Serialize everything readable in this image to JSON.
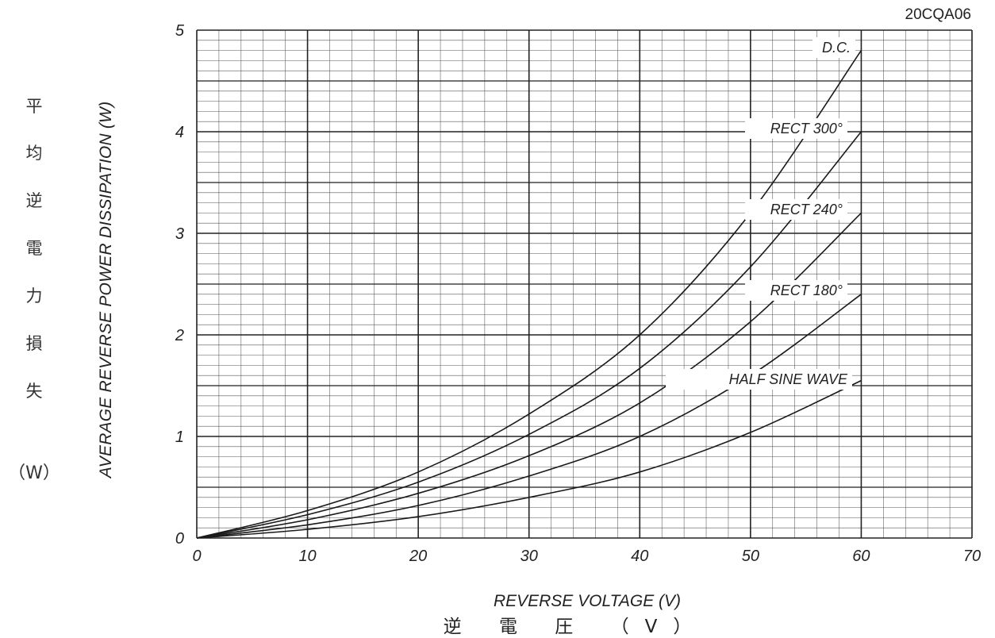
{
  "chart_data": {
    "type": "line",
    "title": "20CQA06",
    "xlabel": "REVERSE VOLTAGE (V)",
    "xlabel_jp": "逆 電 圧 （V）",
    "ylabel": "AVERAGE REVERSE POWER DISSIPATION (W)",
    "ylabel_jp": [
      "平",
      "均",
      "逆",
      "電",
      "力",
      "損",
      "失"
    ],
    "ylabel_jp_unit": "（W）",
    "xlim": [
      0,
      70
    ],
    "ylim": [
      0,
      5
    ],
    "x_ticks": [
      "0",
      "10",
      "20",
      "30",
      "40",
      "50",
      "60",
      "70"
    ],
    "y_ticks": [
      "0",
      "1",
      "2",
      "3",
      "4",
      "5"
    ],
    "grid": true,
    "x": [
      0,
      10,
      20,
      30,
      40,
      50,
      60
    ],
    "series": [
      {
        "name": "D.C.",
        "values": [
          0,
          0.27,
          0.65,
          1.22,
          2.0,
          3.2,
          4.8
        ]
      },
      {
        "name": "RECT 300°",
        "values": [
          0,
          0.23,
          0.55,
          1.02,
          1.67,
          2.67,
          4.0
        ]
      },
      {
        "name": "RECT 240°",
        "values": [
          0,
          0.18,
          0.44,
          0.81,
          1.33,
          2.13,
          3.2
        ]
      },
      {
        "name": "RECT 180°",
        "values": [
          0,
          0.13,
          0.32,
          0.61,
          1.0,
          1.6,
          2.4
        ]
      },
      {
        "name": "HALF SINE WAVE",
        "values": [
          0,
          0.085,
          0.21,
          0.4,
          0.65,
          1.04,
          1.55
        ]
      }
    ]
  }
}
